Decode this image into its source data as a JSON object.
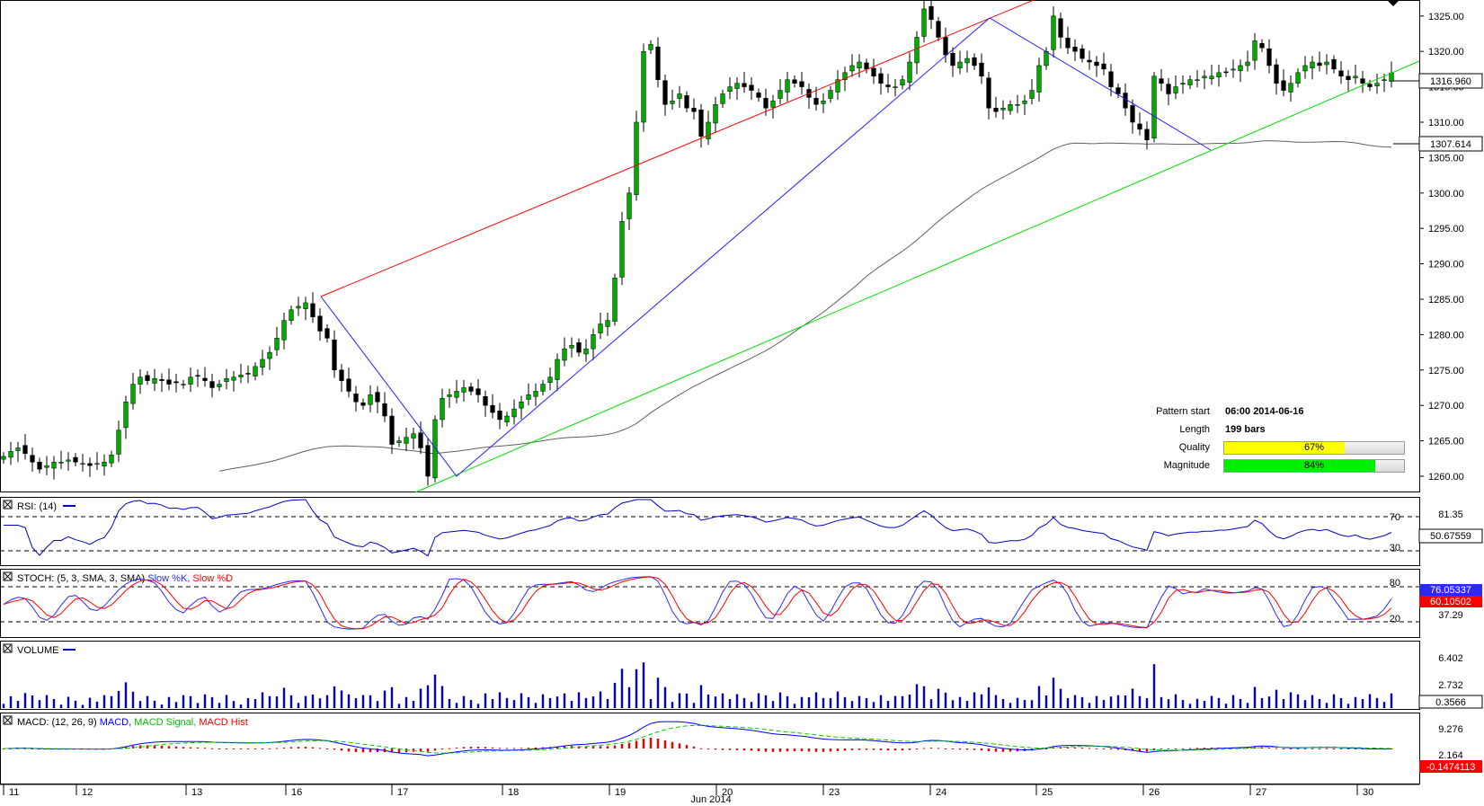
{
  "instrument_price_axis": {
    "ticks": [
      "1325.00",
      "1320.00",
      "1315.00",
      "1310.00",
      "1305.00",
      "1300.00",
      "1295.00",
      "1290.00",
      "1285.00",
      "1280.00",
      "1275.00",
      "1270.00",
      "1265.00",
      "1260.00"
    ],
    "current_price": "1316.960",
    "ma_value": "1307.614"
  },
  "pattern_info": {
    "pattern_start_label": "Pattern start",
    "pattern_start_value": "06:00 2014-06-16",
    "length_label": "Length",
    "length_value": "199 bars",
    "quality_label": "Quality",
    "quality_value": "67%",
    "quality": 0.67,
    "magnitude_label": "Magnitude",
    "magnitude_value": "84%",
    "magnitude": 0.84
  },
  "panels": {
    "rsi": {
      "title": "RSI: (14)",
      "levels": [
        "70",
        "30"
      ],
      "scale_label": "81.35",
      "value": "50.67559"
    },
    "stoch": {
      "title": "STOCH: (5, 3, SMA, 3, SMA)",
      "k_label": "Slow %K,",
      "d_label": "Slow %D",
      "levels": [
        "80",
        "20"
      ],
      "scale_label": "37.29",
      "k_value": "76.05337",
      "d_value": "60.10502"
    },
    "volume": {
      "title": "VOLUME",
      "ticks": [
        "6.402",
        "2.732"
      ],
      "value": "0.3566"
    },
    "macd": {
      "title": "MACD: (12, 26, 9)",
      "macd_label": "MACD,",
      "signal_label": "MACD Signal,",
      "hist_label": "MACD Hist",
      "ticks": [
        "9.276",
        "2.164"
      ],
      "value": "-0.1474113"
    }
  },
  "x_axis": {
    "day_labels": [
      "11",
      "12",
      "13",
      "16",
      "17",
      "18",
      "19",
      "20",
      "23",
      "24",
      "25",
      "26",
      "27",
      "30"
    ],
    "month_label": "Jun 2014"
  },
  "colors": {
    "bull": "#00aa00",
    "bear": "#000000",
    "upper_line": "#ff0000",
    "lower_line": "#00dd00",
    "zigzag": "#2020ff",
    "ma": "#606060",
    "rsi": "#0000cc",
    "stoch_k": "#2a2aff",
    "stoch_d": "#ff0000",
    "volume": "#0000cc",
    "macd": "#0000ff",
    "signal": "#00cc00",
    "hist": "#ee0000"
  },
  "chart_data": {
    "type": "candlestick",
    "xlabel": "Jun 2014",
    "ylim": [
      1256,
      1327
    ],
    "closes": [
      1262.8,
      1263.5,
      1264.0,
      1263.2,
      1262.0,
      1261.0,
      1261.5,
      1262.0,
      1262.0,
      1262.3,
      1262.0,
      1261.8,
      1261.5,
      1261.8,
      1262.0,
      1263.0,
      1266.5,
      1270.5,
      1273.0,
      1274.0,
      1273.5,
      1273.8,
      1273.5,
      1273.0,
      1273.2,
      1273.0,
      1274.0,
      1274.2,
      1273.5,
      1272.5,
      1273.0,
      1273.8,
      1274.0,
      1274.3,
      1274.5,
      1275.5,
      1276.5,
      1277.5,
      1279.5,
      1282.0,
      1283.5,
      1284.0,
      1284.5,
      1282.5,
      1280.5,
      1279.5,
      1275.0,
      1273.5,
      1272.0,
      1270.5,
      1270.0,
      1271.5,
      1270.5,
      1268.5,
      1264.5,
      1265.0,
      1265.5,
      1266.0,
      1264.0,
      1260.0,
      1268.0,
      1271.0,
      1271.5,
      1272.0,
      1272.5,
      1272.0,
      1271.5,
      1270.0,
      1269.0,
      1268.0,
      1268.5,
      1269.5,
      1270.5,
      1271.5,
      1272.0,
      1273.0,
      1274.0,
      1276.5,
      1278.0,
      1278.5,
      1277.5,
      1278.0,
      1280.0,
      1281.5,
      1282.0,
      1288.0,
      1296.0,
      1300.0,
      1310.0,
      1320.0,
      1321.0,
      1316.0,
      1312.5,
      1313.0,
      1314.0,
      1312.0,
      1311.5,
      1308.0,
      1310.0,
      1312.5,
      1314.0,
      1315.0,
      1315.5,
      1315.0,
      1314.5,
      1313.5,
      1312.0,
      1313.0,
      1314.5,
      1316.0,
      1315.5,
      1315.0,
      1313.5,
      1312.5,
      1313.0,
      1314.5,
      1316.0,
      1317.0,
      1318.0,
      1318.5,
      1317.5,
      1316.5,
      1315.5,
      1315.0,
      1315.0,
      1316.0,
      1318.5,
      1322.0,
      1326.0,
      1324.5,
      1322.0,
      1319.5,
      1318.0,
      1318.5,
      1319.0,
      1318.0,
      1316.5,
      1312.0,
      1311.5,
      1312.0,
      1312.5,
      1312.5,
      1313.0,
      1314.5,
      1318.0,
      1320.0,
      1325.0,
      1322.0,
      1320.5,
      1320.0,
      1319.0,
      1318.5,
      1318.0,
      1317.5,
      1315.0,
      1314.0,
      1312.0,
      1310.0,
      1309.0,
      1307.5,
      1316.5,
      1315.5,
      1314.0,
      1315.0,
      1315.5,
      1316.0,
      1316.0,
      1316.5,
      1316.5,
      1317.0,
      1317.0,
      1317.5,
      1318.0,
      1318.5,
      1321.5,
      1320.5,
      1318.0,
      1315.5,
      1314.5,
      1315.5,
      1317.0,
      1318.0,
      1318.5,
      1318.0,
      1318.5,
      1317.5,
      1316.5,
      1316.0,
      1316.5,
      1315.5,
      1315.0,
      1315.5,
      1316.0,
      1316.96
    ]
  }
}
